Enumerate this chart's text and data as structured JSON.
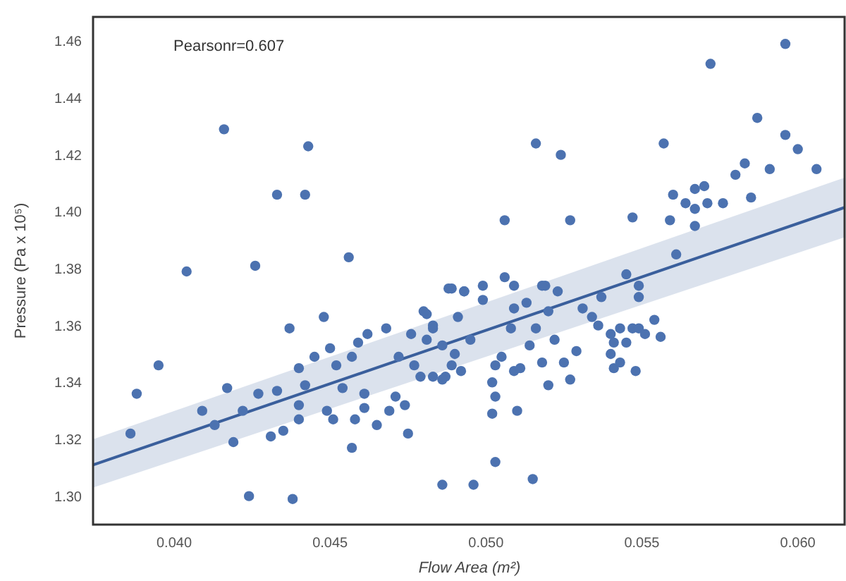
{
  "chart_data": {
    "type": "scatter",
    "xlabel": "Flow Area (m²)",
    "ylabel": "Pressure (Pa x 10⁵)",
    "annotations": [
      "Pearsonr=0.607"
    ],
    "grid": false,
    "xlim": [
      0.0374,
      0.0615
    ],
    "ylim": [
      1.29,
      1.4685
    ],
    "xticks": [
      {
        "value": 0.04,
        "label": "0.040"
      },
      {
        "value": 0.045,
        "label": "0.045"
      },
      {
        "value": 0.05,
        "label": "0.050"
      },
      {
        "value": 0.055,
        "label": "0.055"
      },
      {
        "value": 0.06,
        "label": "0.060"
      }
    ],
    "yticks": [
      {
        "value": 1.3,
        "label": "1.30"
      },
      {
        "value": 1.32,
        "label": "1.32"
      },
      {
        "value": 1.34,
        "label": "1.34"
      },
      {
        "value": 1.36,
        "label": "1.36"
      },
      {
        "value": 1.38,
        "label": "1.38"
      },
      {
        "value": 1.4,
        "label": "1.40"
      },
      {
        "value": 1.42,
        "label": "1.42"
      },
      {
        "value": 1.44,
        "label": "1.44"
      },
      {
        "value": 1.46,
        "label": "1.46"
      }
    ],
    "series": [
      {
        "marker": "circle",
        "color": "#4c72b0",
        "x": [
          0.0416,
          0.0443,
          0.0433,
          0.0442,
          0.0404,
          0.0426,
          0.0456,
          0.0488,
          0.0596,
          0.0572,
          0.0587,
          0.0596,
          0.06,
          0.0606,
          0.0591,
          0.0583,
          0.058,
          0.0585,
          0.0576,
          0.0571,
          0.0567,
          0.0564,
          0.056,
          0.0567,
          0.057,
          0.0567,
          0.0559,
          0.0557,
          0.0547,
          0.0527,
          0.0506,
          0.0516,
          0.0524,
          0.0561,
          0.0506,
          0.0509,
          0.0519,
          0.0545,
          0.0489,
          0.0493,
          0.0388,
          0.0386,
          0.0395,
          0.0409,
          0.0413,
          0.0417,
          0.0419,
          0.0422,
          0.0424,
          0.0427,
          0.0433,
          0.0431,
          0.0435,
          0.0437,
          0.0438,
          0.044,
          0.0442,
          0.044,
          0.044,
          0.0445,
          0.0448,
          0.0449,
          0.045,
          0.0451,
          0.0452,
          0.0454,
          0.0457,
          0.0457,
          0.0458,
          0.0459,
          0.0461,
          0.0461,
          0.0462,
          0.0465,
          0.0468,
          0.0469,
          0.0471,
          0.0472,
          0.0474,
          0.0475,
          0.0476,
          0.0477,
          0.0479,
          0.0481,
          0.0483,
          0.0486,
          0.0487,
          0.0486,
          0.0496,
          0.0503,
          0.0515,
          0.0502,
          0.051,
          0.0503,
          0.0502,
          0.0503,
          0.0509,
          0.0511,
          0.0518,
          0.052,
          0.0525,
          0.0527,
          0.0529,
          0.0514,
          0.0505,
          0.0499,
          0.0491,
          0.0493,
          0.0483,
          0.0486,
          0.0489,
          0.0492,
          0.049,
          0.0495,
          0.0481,
          0.0483,
          0.0508,
          0.0509,
          0.0516,
          0.052,
          0.0522,
          0.0518,
          0.0523,
          0.0531,
          0.0534,
          0.0536,
          0.0537,
          0.054,
          0.0541,
          0.0543,
          0.0545,
          0.0547,
          0.0541,
          0.0543,
          0.0548,
          0.0549,
          0.0551,
          0.0554,
          0.0556,
          0.0549,
          0.0549,
          0.054,
          0.0513,
          0.0499,
          0.048
        ],
        "values": [
          1.429,
          1.423,
          1.406,
          1.406,
          1.379,
          1.381,
          1.384,
          1.373,
          1.459,
          1.452,
          1.433,
          1.427,
          1.422,
          1.415,
          1.415,
          1.417,
          1.413,
          1.405,
          1.403,
          1.403,
          1.401,
          1.403,
          1.406,
          1.408,
          1.409,
          1.395,
          1.397,
          1.424,
          1.398,
          1.397,
          1.397,
          1.424,
          1.42,
          1.385,
          1.377,
          1.374,
          1.374,
          1.378,
          1.373,
          1.372,
          1.336,
          1.322,
          1.346,
          1.33,
          1.325,
          1.338,
          1.319,
          1.33,
          1.3,
          1.336,
          1.337,
          1.321,
          1.323,
          1.359,
          1.299,
          1.345,
          1.339,
          1.332,
          1.327,
          1.349,
          1.363,
          1.33,
          1.352,
          1.327,
          1.346,
          1.338,
          1.349,
          1.317,
          1.327,
          1.354,
          1.336,
          1.331,
          1.357,
          1.325,
          1.359,
          1.33,
          1.335,
          1.349,
          1.332,
          1.322,
          1.357,
          1.346,
          1.342,
          1.364,
          1.359,
          1.304,
          1.342,
          1.353,
          1.304,
          1.312,
          1.306,
          1.329,
          1.33,
          1.335,
          1.34,
          1.346,
          1.344,
          1.345,
          1.347,
          1.339,
          1.347,
          1.341,
          1.351,
          1.353,
          1.349,
          1.369,
          1.363,
          1.372,
          1.342,
          1.341,
          1.346,
          1.344,
          1.35,
          1.355,
          1.355,
          1.36,
          1.359,
          1.366,
          1.359,
          1.365,
          1.355,
          1.374,
          1.372,
          1.366,
          1.363,
          1.36,
          1.37,
          1.357,
          1.354,
          1.359,
          1.354,
          1.359,
          1.345,
          1.347,
          1.344,
          1.359,
          1.357,
          1.362,
          1.356,
          1.37,
          1.374,
          1.35,
          1.368,
          1.374,
          1.365
        ]
      },
      {
        "type": "line",
        "color": "#3a5f9c",
        "x": [
          0.0374,
          0.0615
        ],
        "values": [
          1.311,
          1.4015
        ],
        "lower": [
          1.303,
          1.391
        ],
        "upper": [
          1.32,
          1.412
        ]
      }
    ]
  }
}
